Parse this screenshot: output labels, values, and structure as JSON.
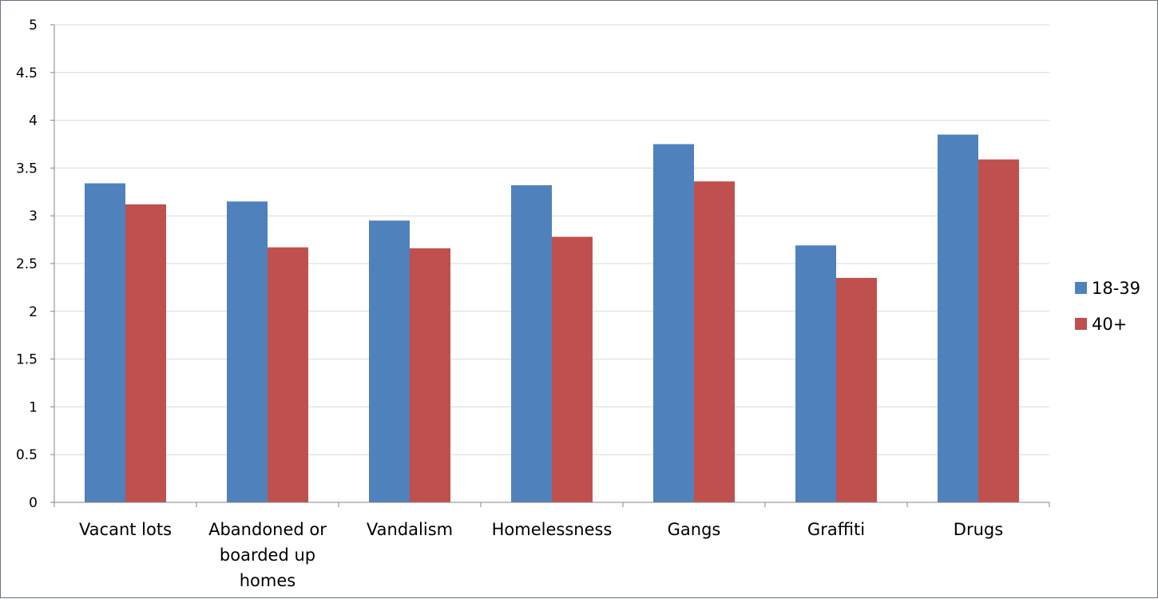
{
  "chart_data": {
    "type": "bar",
    "title": "",
    "xlabel": "",
    "ylabel": "",
    "ylim": [
      0,
      5
    ],
    "yticks": [
      0,
      0.5,
      1,
      1.5,
      2,
      2.5,
      3,
      3.5,
      4,
      4.5,
      5
    ],
    "ytick_labels": [
      "0",
      "0.5",
      "1",
      "1.5",
      "2",
      "2.5",
      "3",
      "3.5",
      "4",
      "4.5",
      "5"
    ],
    "grid": true,
    "legend_position": "right",
    "categories": [
      [
        "Vacant lots"
      ],
      [
        "Abandoned or",
        "boarded up",
        "homes"
      ],
      [
        "Vandalism"
      ],
      [
        "Homelessness"
      ],
      [
        "Gangs"
      ],
      [
        "Graffiti"
      ],
      [
        "Drugs"
      ]
    ],
    "series": [
      {
        "name": "18-39",
        "color": "#4f81bd",
        "values": [
          3.34,
          3.15,
          2.95,
          3.32,
          3.75,
          2.69,
          3.85
        ]
      },
      {
        "name": "40+",
        "color": "#c0504d",
        "values": [
          3.12,
          2.67,
          2.66,
          2.78,
          3.36,
          2.35,
          3.59
        ]
      }
    ]
  }
}
